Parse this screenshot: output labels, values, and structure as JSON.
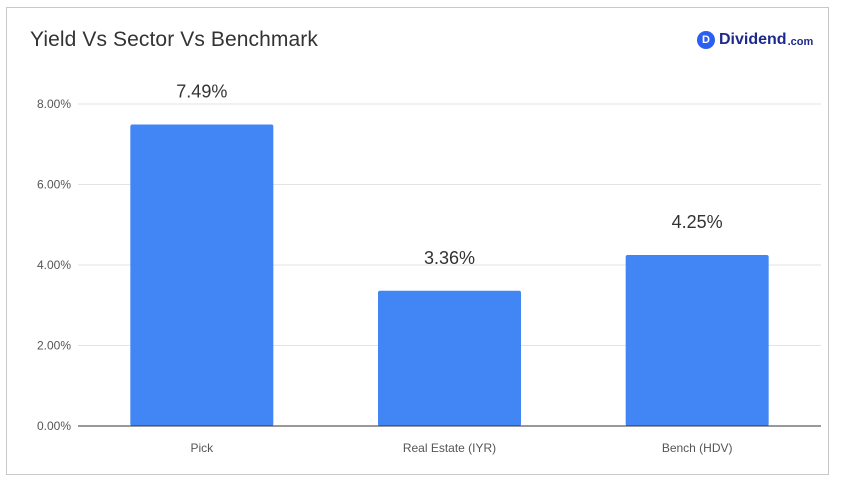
{
  "header": {
    "title": "Yield Vs Sector Vs Benchmark",
    "logo_mark": "D",
    "logo_text": "Dividend",
    "logo_suffix": ".com"
  },
  "colors": {
    "bar": "#4285f4",
    "grid": "#e3e3e3",
    "axis": "#333333",
    "tick_text": "#555555",
    "label_text": "#333333"
  },
  "chart_data": {
    "type": "bar",
    "title": "Yield Vs Sector Vs Benchmark",
    "categories": [
      "Pick",
      "Real Estate (IYR)",
      "Bench (HDV)"
    ],
    "values": [
      7.49,
      3.36,
      4.25
    ],
    "data_labels": [
      "7.49%",
      "3.36%",
      "4.25%"
    ],
    "xlabel": "",
    "ylabel": "",
    "ylim": [
      0,
      8
    ],
    "yticks": [
      0,
      2,
      4,
      6,
      8
    ],
    "ytick_labels": [
      "0.00%",
      "2.00%",
      "4.00%",
      "6.00%",
      "8.00%"
    ],
    "grid": true,
    "legend": "none"
  }
}
